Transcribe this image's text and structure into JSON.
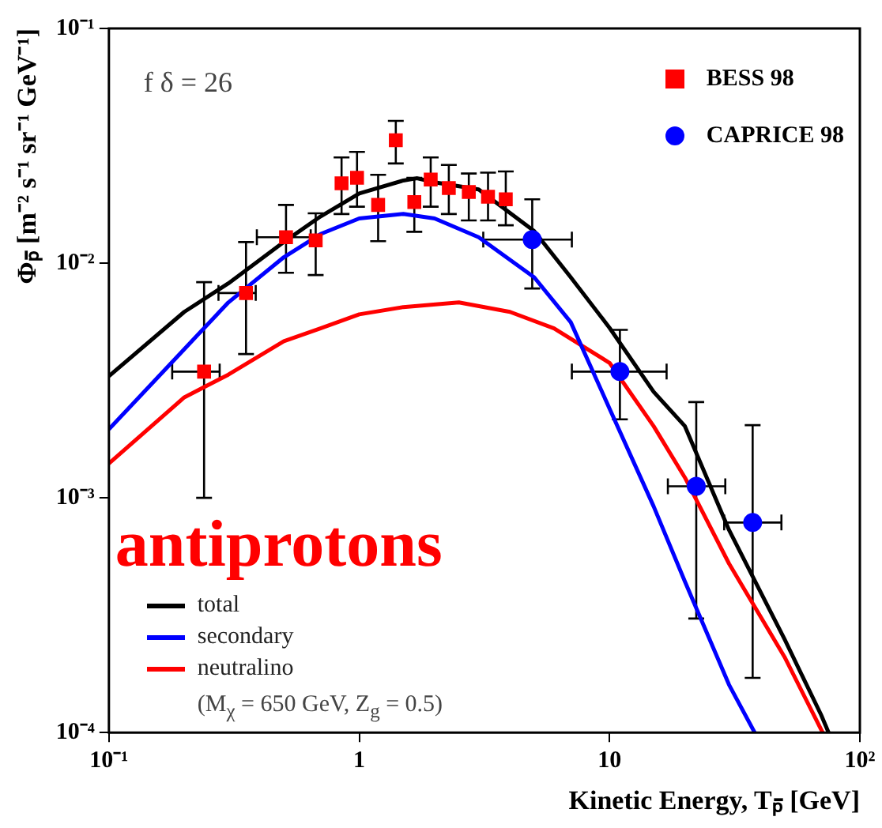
{
  "chart_data": {
    "type": "scatter",
    "xlabel": "Kinetic Energy, Tₚ̄ [GeV]",
    "ylabel": "Φₚ̄ [m⁻² s⁻¹ sr⁻¹ GeV⁻¹]",
    "log": "xy",
    "grid": false,
    "legend": "top right",
    "xlim": [
      0.1,
      100
    ],
    "xticks": [
      {
        "value": 0.1,
        "label": "10⁻¹"
      },
      1,
      10,
      {
        "value": 100,
        "label": "10²"
      }
    ],
    "ylim": [
      0.0001,
      0.1
    ],
    "yticks": [
      {
        "value": 0.0001,
        "label": "10⁻⁴"
      },
      {
        "value": 0.001,
        "label": "10⁻³"
      },
      {
        "value": 0.01,
        "label": "10⁻²"
      },
      {
        "value": 0.1,
        "label": "10⁻¹"
      }
    ],
    "annotations": [
      "f δ = 26",
      "(M$_{χ}$ = 650 GeV, Z$_{g}$ = 0.5)",
      "antiprotons"
    ],
    "series": [
      {
        "name": "BESS 98",
        "marker": "square",
        "color": "#ff0000",
        "x": [
          0.24,
          0.353,
          0.51,
          0.67,
          0.85,
          0.98,
          1.19,
          1.4,
          1.66,
          1.93,
          2.28,
          2.74,
          3.27,
          3.85
        ],
        "values": [
          0.00345,
          0.00746,
          0.0129,
          0.0125,
          0.0219,
          0.0231,
          0.0177,
          0.0334,
          0.0182,
          0.0227,
          0.0209,
          0.0201,
          0.0192,
          0.0187
        ],
        "errors": [
          [
            0.001,
            0.0083
          ],
          [
            0.0041,
            0.0123
          ],
          [
            0.0091,
            0.0177
          ],
          [
            0.0089,
            0.0163
          ],
          [
            0.0162,
            0.0282
          ],
          [
            0.0174,
            0.0298
          ],
          [
            0.0124,
            0.0238
          ],
          [
            0.0266,
            0.0404
          ],
          [
            0.0136,
            0.0231
          ],
          [
            0.0174,
            0.0282
          ],
          [
            0.0162,
            0.0262
          ],
          [
            0.0152,
            0.0241
          ],
          [
            0.0152,
            0.0243
          ],
          [
            0.0145,
            0.0246
          ]
        ],
        "xerrors": [
          [
            0.179,
            0.277
          ],
          [
            0.274,
            0.386
          ],
          [
            0.39,
            0.64
          ],
          null,
          null,
          null,
          null,
          null,
          null,
          null,
          null,
          null,
          null,
          null
        ]
      },
      {
        "name": "CAPRICE 98",
        "marker": "circle",
        "color": "#0000ff",
        "x": [
          4.91,
          11,
          22.2,
          37.3
        ],
        "values": [
          0.0126,
          0.00345,
          0.00112,
          0.000785
        ],
        "errors": [
          [
            0.0078,
            0.0187
          ],
          [
            0.00216,
            0.0052
          ],
          [
            0.000306,
            0.00256
          ],
          [
            0.000171,
            0.00204
          ]
        ],
        "xerrors": [
          [
            3.13,
            7.07
          ],
          [
            7.07,
            16.9
          ],
          [
            17.1,
            29
          ],
          [
            28.7,
            48.6
          ]
        ]
      },
      {
        "name": "total",
        "type": "line",
        "marker": "none",
        "color": "#000000",
        "x": [
          0.1,
          0.2,
          0.3,
          0.5,
          0.7,
          1,
          1.5,
          1.7,
          2,
          3,
          5,
          7,
          10,
          15,
          20,
          30,
          50,
          70,
          75
        ],
        "values": [
          0.0033,
          0.0062,
          0.0082,
          0.0123,
          0.0158,
          0.0198,
          0.0225,
          0.023,
          0.0221,
          0.0206,
          0.0137,
          0.0087,
          0.0053,
          0.00283,
          0.00202,
          0.00073,
          0.00025,
          0.000119,
          0.0001
        ]
      },
      {
        "name": "secondary",
        "type": "line",
        "marker": "none",
        "color": "#0000ff",
        "x": [
          0.1,
          0.2,
          0.3,
          0.5,
          0.7,
          1,
          1.5,
          2,
          3,
          5,
          7,
          10,
          15,
          20,
          30,
          38
        ],
        "values": [
          0.00196,
          0.0043,
          0.0068,
          0.0106,
          0.0133,
          0.0155,
          0.0162,
          0.0155,
          0.0129,
          0.0087,
          0.0056,
          0.0024,
          0.00092,
          0.00044,
          0.00016,
          0.0001
        ]
      },
      {
        "name": "neutralino",
        "type": "line",
        "marker": "none",
        "color": "#ff0000",
        "x": [
          0.1,
          0.2,
          0.3,
          0.5,
          0.7,
          1,
          1.5,
          2.5,
          4,
          6,
          10,
          15,
          20,
          30,
          50,
          71
        ],
        "values": [
          0.0014,
          0.00268,
          0.00335,
          0.00465,
          0.00527,
          0.00605,
          0.0065,
          0.0068,
          0.0062,
          0.00527,
          0.00376,
          0.00202,
          0.00122,
          0.000525,
          0.00021,
          0.0001
        ]
      }
    ]
  }
}
